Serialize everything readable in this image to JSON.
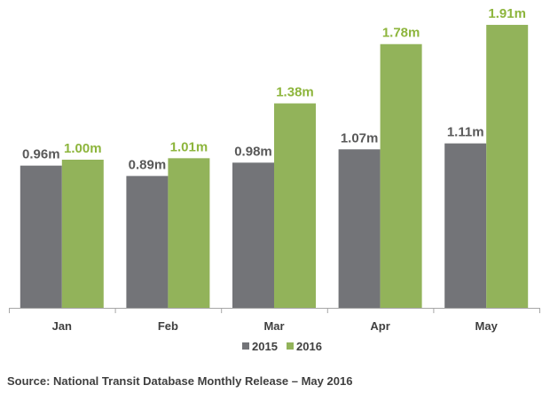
{
  "chart_data": {
    "type": "bar",
    "categories": [
      "Jan",
      "Feb",
      "Mar",
      "Apr",
      "May"
    ],
    "series": [
      {
        "name": "2015",
        "values": [
          0.96,
          0.89,
          0.98,
          1.07,
          1.11
        ],
        "labels": [
          "0.96m",
          "0.89m",
          "0.98m",
          "1.07m",
          "1.11m"
        ],
        "color": "#737478",
        "label_color": "#595959"
      },
      {
        "name": "2016",
        "values": [
          1.0,
          1.01,
          1.38,
          1.78,
          1.91
        ],
        "labels": [
          "1.00m",
          "1.01m",
          "1.38m",
          "1.78m",
          "1.91m"
        ],
        "color": "#92B35A",
        "label_color": "#8DB53C"
      }
    ],
    "ylim": [
      0,
      2
    ],
    "grid": false,
    "legend": "bottom-center",
    "axis_color": "#A6A6A6"
  },
  "source": "Source: National Transit Database Monthly Release – May 2016"
}
